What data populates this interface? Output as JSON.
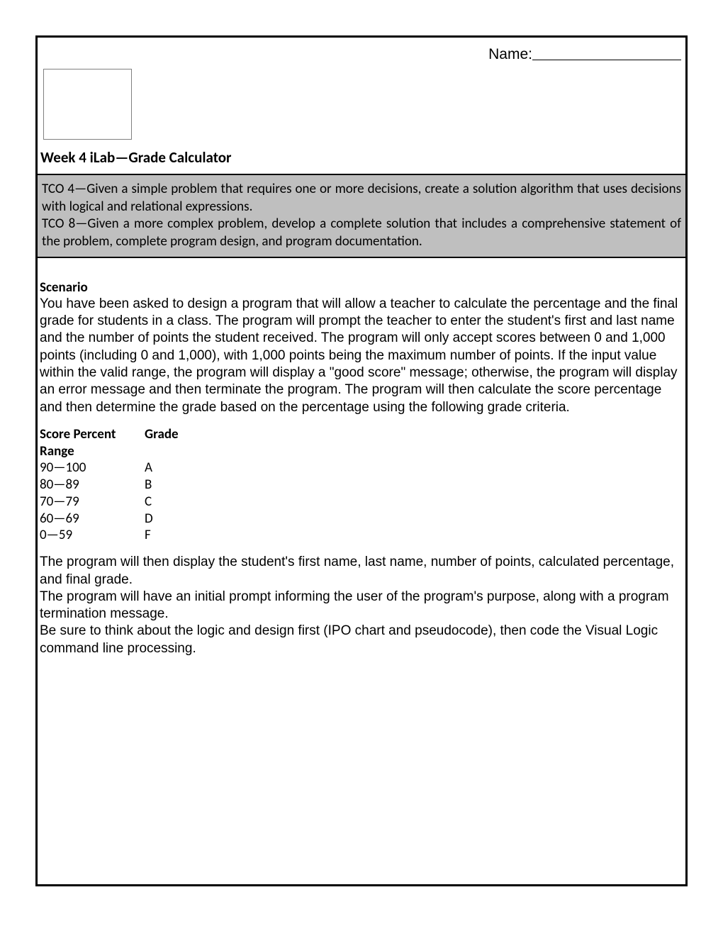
{
  "header": {
    "name_label": "Name:"
  },
  "title": "Week 4 iLab—Grade Calculator",
  "tco": {
    "line1": "TCO 4—Given a simple problem that requires one or more decisions, create a solution algorithm that uses decisions with logical and relational expressions.",
    "line2": "TCO 8—Given a more complex problem, develop a complete solution that includes a comprehensive statement of the problem, complete program design, and program documentation."
  },
  "scenario": {
    "heading": "Scenario",
    "body": "You have been asked to design a program that will allow a teacher to calculate the percentage and the final grade for students in a class. The program will prompt the teacher to enter the student's first and last name and the number of points the student received. The program will only accept scores between 0 and 1,000 points (including 0 and 1,000), with 1,000 points being the maximum number of points. If the input value within the valid range, the program will display a \"good score\" message; otherwise, the program will display an error message and then terminate the program. The program will then calculate the score percentage and then determine the grade based on the percentage using the following grade criteria."
  },
  "grade_table": {
    "col1_header_a": "Score Percent",
    "col1_header_b": "Range",
    "col2_header": "Grade",
    "rows": [
      {
        "range": "90—100",
        "grade": "A"
      },
      {
        "range": "80—89",
        "grade": "B"
      },
      {
        "range": "70—79",
        "grade": "C"
      },
      {
        "range": "60—69",
        "grade": "D"
      },
      {
        "range": "0—59",
        "grade": "F"
      }
    ]
  },
  "closing": {
    "p1": "The program will then display the student's first name, last name, number of points, calculated percentage, and final grade.",
    "p2": "The program will have an initial prompt informing the user of the program's purpose, along with a program termination message.",
    "p3": "Be sure to think about the logic and design first (IPO chart and pseudocode), then code the Visual Logic command line processing."
  },
  "colors": {
    "tco_bg": "#bfbfbf",
    "border": "#000000",
    "imgbox_border": "#808080"
  }
}
